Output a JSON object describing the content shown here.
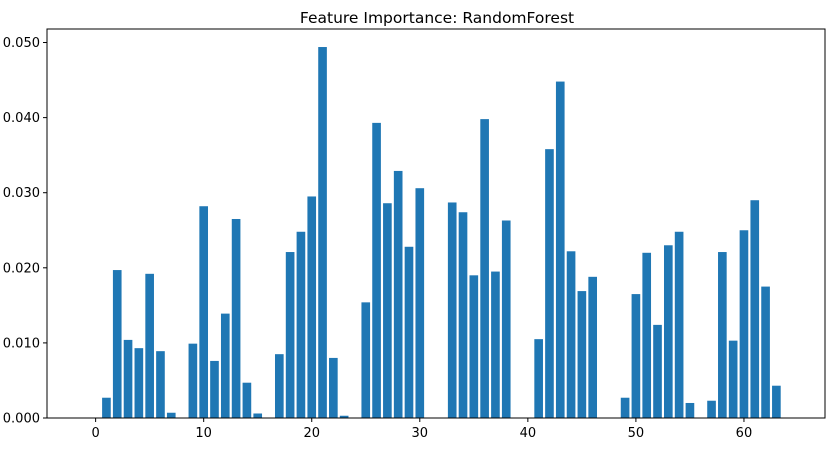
{
  "chart_data": {
    "type": "bar",
    "title": "Feature Importance: RandomForest",
    "xlabel": "",
    "ylabel": "",
    "xlim": [
      -4.5,
      67.5
    ],
    "ylim": [
      0,
      0.0518
    ],
    "grid": false,
    "color": "#1f77b4",
    "xticks": [
      0,
      10,
      20,
      30,
      40,
      50,
      60
    ],
    "xtick_labels": [
      "0",
      "10",
      "20",
      "30",
      "40",
      "50",
      "60"
    ],
    "yticks": [
      0,
      0.01,
      0.02,
      0.03,
      0.04,
      0.05
    ],
    "ytick_labels": [
      "0.000",
      "0.010",
      "0.020",
      "0.030",
      "0.040",
      "0.050"
    ],
    "x": [
      0,
      1,
      2,
      3,
      4,
      5,
      6,
      7,
      8,
      9,
      10,
      11,
      12,
      13,
      14,
      15,
      16,
      17,
      18,
      19,
      20,
      21,
      22,
      23,
      24,
      25,
      26,
      27,
      28,
      29,
      30,
      31,
      32,
      33,
      34,
      35,
      36,
      37,
      38,
      39,
      40,
      41,
      42,
      43,
      44,
      45,
      46,
      47,
      48,
      49,
      50,
      51,
      52,
      53,
      54,
      55,
      56,
      57,
      58,
      59,
      60,
      61,
      62,
      63
    ],
    "values": [
      0,
      0.0027,
      0.0197,
      0.0104,
      0.0093,
      0.0192,
      0.0089,
      0.0007,
      0,
      0.0099,
      0.0282,
      0.0076,
      0.0139,
      0.0265,
      0.0047,
      0.0006,
      0,
      0.0085,
      0.0221,
      0.0248,
      0.0295,
      0.0494,
      0.008,
      0.0003,
      0,
      0.0154,
      0.0393,
      0.0286,
      0.0329,
      0.0228,
      0.0306,
      0,
      0,
      0.0287,
      0.0274,
      0.019,
      0.0398,
      0.0195,
      0.0263,
      0,
      0,
      0.0105,
      0.0358,
      0.0448,
      0.0222,
      0.0169,
      0.0188,
      0,
      0,
      0.0027,
      0.0165,
      0.022,
      0.0124,
      0.023,
      0.0248,
      0.002,
      0,
      0.0023,
      0.0221,
      0.0103,
      0.025,
      0.029,
      0.0175,
      0.0043
    ]
  }
}
